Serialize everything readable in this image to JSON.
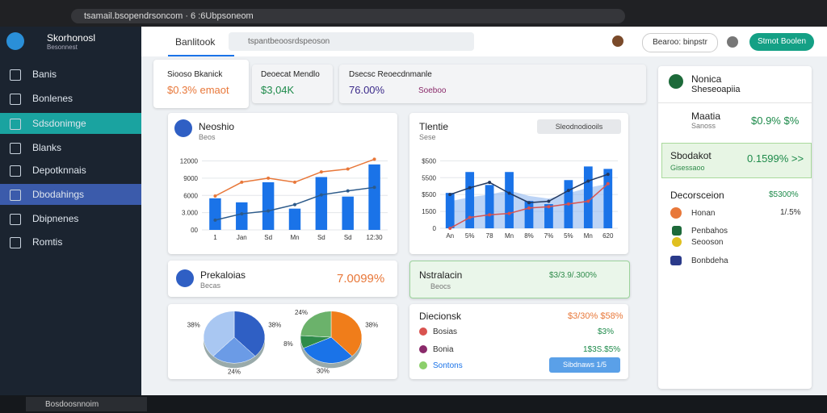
{
  "browser": {
    "address": "tsamail.bsopendrsoncom · 6 :6Ubpsoneom"
  },
  "app": {
    "name": "Skorhonosl",
    "subtitle": "Besonnest"
  },
  "sidebar": {
    "items": [
      "Banis",
      "Bonlenes",
      "Sdsdonimge",
      "Blanks",
      "Depotknnais",
      "Dbodahings",
      "Dbipnenes",
      "Romtis"
    ]
  },
  "header": {
    "tab": "Banlitook",
    "search": "tspantbeoosrdspeoson",
    "button": "Bearoo: binpstr",
    "action": "Stmot Boolen"
  },
  "summary": [
    {
      "title": "Siooso Bkanick",
      "value": "$0.3% emaot"
    },
    {
      "title": "Deoecat Mendlo",
      "value": "$3,04K"
    },
    {
      "title": "Dsecsc Reoecdnmanle",
      "value": "76.00%",
      "extra": "Soeboo"
    }
  ],
  "bar_chart": {
    "title": "Neoshio",
    "subtitle": "Beos",
    "categories": [
      "1",
      "Jan",
      "Sd",
      "Mn",
      "Sd",
      "Sd",
      "12:30"
    ],
    "bars": {
      "color": "#1a73e8",
      "values": [
        5500,
        4800,
        8300,
        3700,
        9200,
        5800,
        11400
      ]
    },
    "lines": [
      {
        "color": "#e8783a",
        "values": [
          5900,
          8300,
          9000,
          8300,
          10100,
          10600,
          12300
        ]
      },
      {
        "color": "#2c5a8a",
        "values": [
          1700,
          2800,
          3300,
          4400,
          6100,
          6800,
          7400
        ]
      }
    ],
    "ylim": [
      0,
      12500
    ],
    "yticks": [
      {
        "value": 0,
        "label": "00"
      },
      {
        "value": 3000,
        "label": "3.000"
      },
      6000,
      9000,
      12000
    ]
  },
  "area_chart": {
    "title": "Tlentie",
    "subtitle": "Sese",
    "control": "Sleodnodiooils",
    "categories": [
      "An",
      "5%",
      "78",
      "Mn",
      "8%",
      "7%",
      "5%",
      "Mn",
      "620"
    ],
    "bars": {
      "color": "#1a73e8",
      "values": [
        262,
        417,
        321,
        417,
        202,
        179,
        357,
        458,
        440
      ]
    },
    "area": {
      "color": "#8fb8f0",
      "values": [
        200,
        230,
        250,
        280,
        240,
        220,
        260,
        300,
        330
      ]
    },
    "lines": [
      {
        "color": "#23385e",
        "values": [
          250,
          300,
          340,
          260,
          190,
          200,
          280,
          350,
          400
        ]
      },
      {
        "color": "#d9534f",
        "values": [
          0,
          80,
          100,
          110,
          150,
          160,
          180,
          200,
          330
        ]
      }
    ],
    "ylim": [
      0,
      520
    ],
    "yticks": [
      0,
      {
        "value": 125,
        "label": "1500"
      },
      {
        "value": 250,
        "label": "$500"
      },
      {
        "value": 375,
        "label": "5500"
      },
      {
        "value": 500,
        "label": "$500"
      }
    ]
  },
  "revenue": {
    "title": "Prekaloias",
    "subtitle": "Becas",
    "value": "7.0099%"
  },
  "notice": {
    "title": "Nstralacin",
    "subtitle": "Beocs",
    "value": "$3/3.9/.300%"
  },
  "pies": [
    {
      "colors": [
        "#2f5fc4",
        "#6b9be6",
        "#a9c7f2"
      ],
      "values": [
        38,
        24,
        38
      ],
      "value_labels": [
        "38%",
        "24%",
        "38%"
      ]
    },
    {
      "colors": [
        "#f07d1a",
        "#1a73e8",
        "#2e8b4a",
        "#6bb26b"
      ],
      "values": [
        38,
        30,
        8,
        24
      ],
      "value_labels": [
        "38%",
        "30%",
        "8%",
        "24%"
      ]
    }
  ],
  "list_card": {
    "title": "Diecionsk",
    "value": "$3/30% $58%",
    "items": [
      {
        "label": "Bosias",
        "value": "$3%"
      },
      {
        "label": "Bonia",
        "value": "1$3S.$5%"
      },
      {
        "label": "Sontons",
        "value": ""
      }
    ],
    "button": "Sibdnaws 1/5"
  },
  "panel": {
    "title": "Nonica",
    "subtitle": "Sheseoapiia",
    "metric": {
      "title": "Maatia",
      "subtitle": "Sanoss",
      "value": "$0.9% $%"
    },
    "highlight": {
      "title": "Sbodakot",
      "subtitle": "Gisessaoo",
      "value": "0.1599% >>"
    },
    "section": {
      "title": "Decorsceion",
      "value": "$5300%"
    },
    "items": [
      {
        "label": "Honan",
        "value": "1/.5%"
      },
      {
        "label": "Penbahos",
        "value": ""
      },
      {
        "label": "Seooson",
        "value": ""
      },
      {
        "label": "Bonbdeha",
        "value": ""
      }
    ]
  },
  "taskbar": {
    "search": "Bosdoosnnoim"
  }
}
